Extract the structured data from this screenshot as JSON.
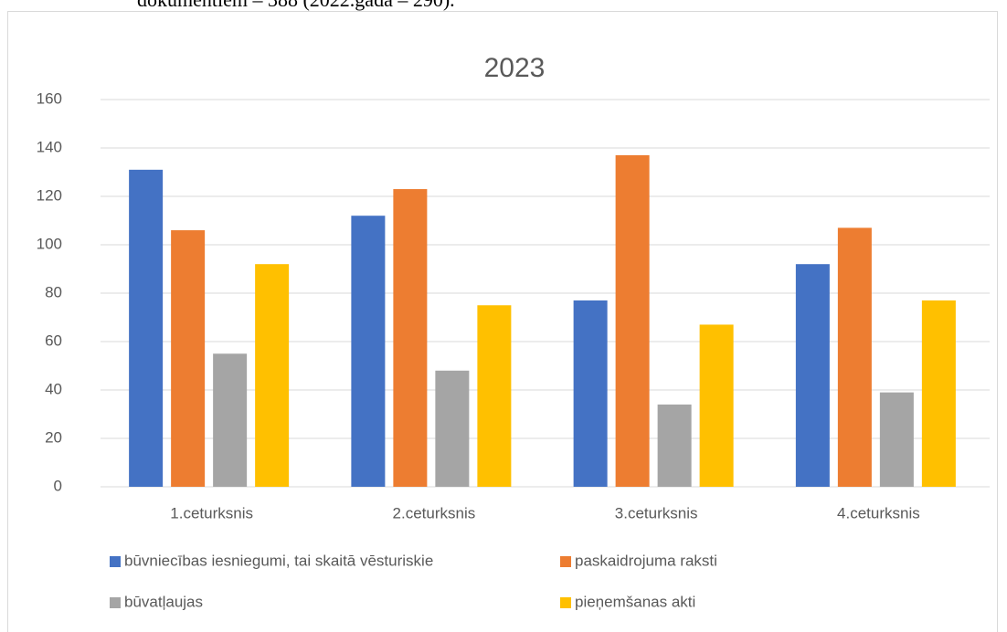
{
  "context_text": "dokumentiem – 388 (2022.gadā – 290).",
  "chart_data": {
    "type": "bar",
    "title": "2023",
    "categories": [
      "1.ceturksnis",
      "2.ceturksnis",
      "3.ceturksnis",
      "4.ceturksnis"
    ],
    "series": [
      {
        "name": "būvniecības iesniegumi, tai skaitā vēsturiskie",
        "color": "#4472c4",
        "values": [
          131,
          112,
          77,
          92
        ]
      },
      {
        "name": "paskaidrojuma raksti",
        "color": "#ed7d31",
        "values": [
          106,
          123,
          137,
          107
        ]
      },
      {
        "name": "būvatļaujas",
        "color": "#a5a5a5",
        "values": [
          55,
          48,
          34,
          39
        ]
      },
      {
        "name": "pieņemšanas akti",
        "color": "#ffc000",
        "values": [
          92,
          75,
          67,
          77
        ]
      }
    ],
    "ylim": [
      0,
      160
    ],
    "yticks": [
      0,
      20,
      40,
      60,
      80,
      100,
      120,
      140,
      160
    ],
    "grid": true
  }
}
